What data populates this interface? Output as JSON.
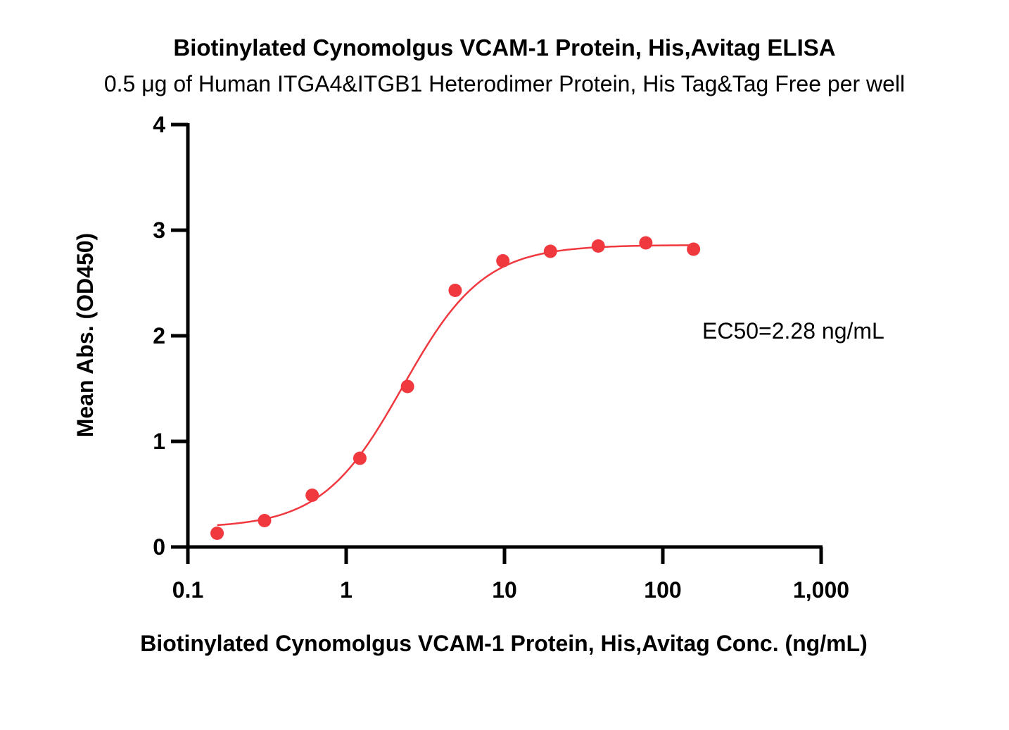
{
  "chart_data": {
    "type": "scatter",
    "title": "Biotinylated Cynomolgus VCAM-1 Protein, His,Avitag ELISA",
    "subtitle": "0.5 μg of Human ITGA4&ITGB1 Heterodimer Protein, His Tag&Tag Free per well",
    "xlabel": "Biotinylated Cynomolgus VCAM-1 Protein, His,Avitag Conc. (ng/mL)",
    "ylabel": "Mean Abs. (OD450)",
    "x_scale": "log",
    "xlim": [
      0.1,
      1000
    ],
    "ylim": [
      0,
      4
    ],
    "x_ticks": [
      0.1,
      1,
      10,
      100,
      1000
    ],
    "x_tick_labels": [
      "0.1",
      "1",
      "10",
      "100",
      "1,000"
    ],
    "y_ticks": [
      0,
      1,
      2,
      3,
      4
    ],
    "y_tick_labels": [
      "0",
      "1",
      "2",
      "3",
      "4"
    ],
    "grid": false,
    "annotation": "EC50=2.28 ng/mL",
    "series": [
      {
        "color": "#f0393f",
        "x": [
          0.153,
          0.305,
          0.61,
          1.22,
          2.44,
          4.88,
          9.77,
          19.5,
          39.1,
          78.1,
          156.3
        ],
        "y": [
          0.13,
          0.25,
          0.49,
          0.84,
          1.52,
          2.43,
          2.71,
          2.8,
          2.85,
          2.88,
          2.82
        ],
        "fit": {
          "model": "4PL",
          "bottom": 0.18,
          "top": 2.86,
          "ec50": 2.28,
          "hill": 1.7,
          "x_range": [
            0.153,
            156.3
          ]
        }
      }
    ]
  }
}
